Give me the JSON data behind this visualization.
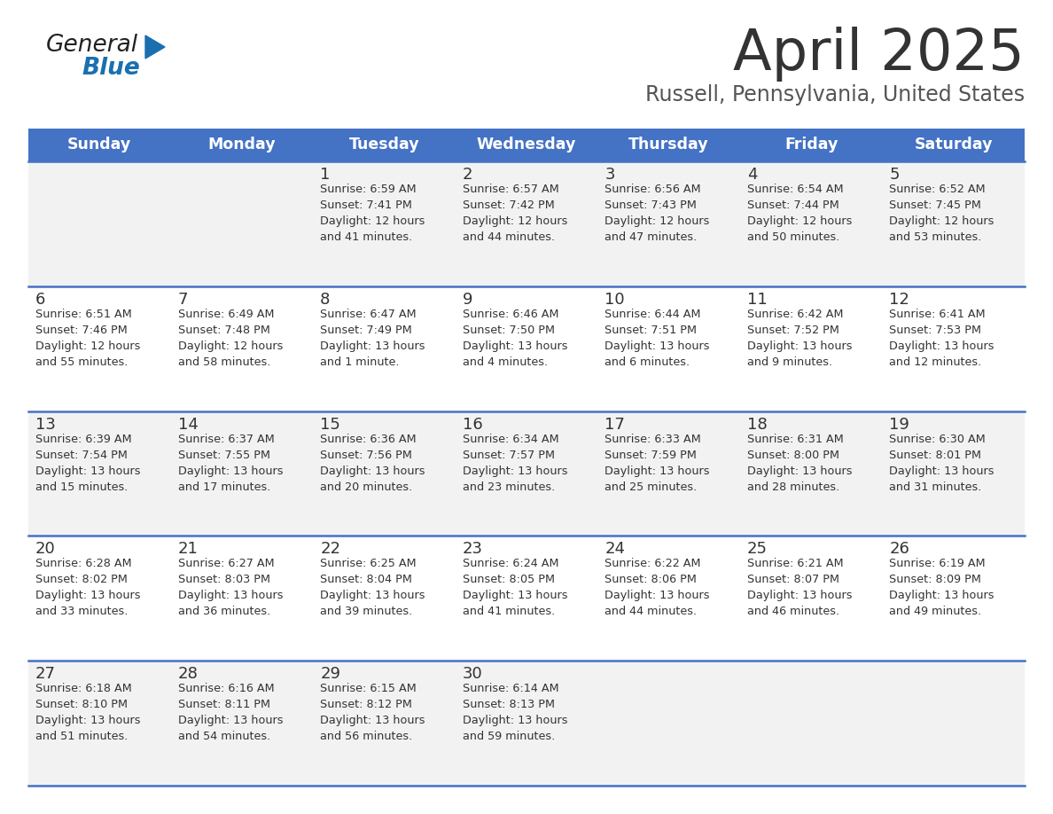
{
  "title": "April 2025",
  "subtitle": "Russell, Pennsylvania, United States",
  "header_bg_color": "#4472C4",
  "header_text_color": "#FFFFFF",
  "row_bg_even": "#F2F2F2",
  "row_bg_odd": "#FFFFFF",
  "separator_color": "#4472C4",
  "day_headers": [
    "Sunday",
    "Monday",
    "Tuesday",
    "Wednesday",
    "Thursday",
    "Friday",
    "Saturday"
  ],
  "calendar": [
    [
      {
        "day": "",
        "sunrise": "",
        "sunset": "",
        "daylight": ""
      },
      {
        "day": "",
        "sunrise": "",
        "sunset": "",
        "daylight": ""
      },
      {
        "day": "1",
        "sunrise": "Sunrise: 6:59 AM",
        "sunset": "Sunset: 7:41 PM",
        "daylight": "Daylight: 12 hours\nand 41 minutes."
      },
      {
        "day": "2",
        "sunrise": "Sunrise: 6:57 AM",
        "sunset": "Sunset: 7:42 PM",
        "daylight": "Daylight: 12 hours\nand 44 minutes."
      },
      {
        "day": "3",
        "sunrise": "Sunrise: 6:56 AM",
        "sunset": "Sunset: 7:43 PM",
        "daylight": "Daylight: 12 hours\nand 47 minutes."
      },
      {
        "day": "4",
        "sunrise": "Sunrise: 6:54 AM",
        "sunset": "Sunset: 7:44 PM",
        "daylight": "Daylight: 12 hours\nand 50 minutes."
      },
      {
        "day": "5",
        "sunrise": "Sunrise: 6:52 AM",
        "sunset": "Sunset: 7:45 PM",
        "daylight": "Daylight: 12 hours\nand 53 minutes."
      }
    ],
    [
      {
        "day": "6",
        "sunrise": "Sunrise: 6:51 AM",
        "sunset": "Sunset: 7:46 PM",
        "daylight": "Daylight: 12 hours\nand 55 minutes."
      },
      {
        "day": "7",
        "sunrise": "Sunrise: 6:49 AM",
        "sunset": "Sunset: 7:48 PM",
        "daylight": "Daylight: 12 hours\nand 58 minutes."
      },
      {
        "day": "8",
        "sunrise": "Sunrise: 6:47 AM",
        "sunset": "Sunset: 7:49 PM",
        "daylight": "Daylight: 13 hours\nand 1 minute."
      },
      {
        "day": "9",
        "sunrise": "Sunrise: 6:46 AM",
        "sunset": "Sunset: 7:50 PM",
        "daylight": "Daylight: 13 hours\nand 4 minutes."
      },
      {
        "day": "10",
        "sunrise": "Sunrise: 6:44 AM",
        "sunset": "Sunset: 7:51 PM",
        "daylight": "Daylight: 13 hours\nand 6 minutes."
      },
      {
        "day": "11",
        "sunrise": "Sunrise: 6:42 AM",
        "sunset": "Sunset: 7:52 PM",
        "daylight": "Daylight: 13 hours\nand 9 minutes."
      },
      {
        "day": "12",
        "sunrise": "Sunrise: 6:41 AM",
        "sunset": "Sunset: 7:53 PM",
        "daylight": "Daylight: 13 hours\nand 12 minutes."
      }
    ],
    [
      {
        "day": "13",
        "sunrise": "Sunrise: 6:39 AM",
        "sunset": "Sunset: 7:54 PM",
        "daylight": "Daylight: 13 hours\nand 15 minutes."
      },
      {
        "day": "14",
        "sunrise": "Sunrise: 6:37 AM",
        "sunset": "Sunset: 7:55 PM",
        "daylight": "Daylight: 13 hours\nand 17 minutes."
      },
      {
        "day": "15",
        "sunrise": "Sunrise: 6:36 AM",
        "sunset": "Sunset: 7:56 PM",
        "daylight": "Daylight: 13 hours\nand 20 minutes."
      },
      {
        "day": "16",
        "sunrise": "Sunrise: 6:34 AM",
        "sunset": "Sunset: 7:57 PM",
        "daylight": "Daylight: 13 hours\nand 23 minutes."
      },
      {
        "day": "17",
        "sunrise": "Sunrise: 6:33 AM",
        "sunset": "Sunset: 7:59 PM",
        "daylight": "Daylight: 13 hours\nand 25 minutes."
      },
      {
        "day": "18",
        "sunrise": "Sunrise: 6:31 AM",
        "sunset": "Sunset: 8:00 PM",
        "daylight": "Daylight: 13 hours\nand 28 minutes."
      },
      {
        "day": "19",
        "sunrise": "Sunrise: 6:30 AM",
        "sunset": "Sunset: 8:01 PM",
        "daylight": "Daylight: 13 hours\nand 31 minutes."
      }
    ],
    [
      {
        "day": "20",
        "sunrise": "Sunrise: 6:28 AM",
        "sunset": "Sunset: 8:02 PM",
        "daylight": "Daylight: 13 hours\nand 33 minutes."
      },
      {
        "day": "21",
        "sunrise": "Sunrise: 6:27 AM",
        "sunset": "Sunset: 8:03 PM",
        "daylight": "Daylight: 13 hours\nand 36 minutes."
      },
      {
        "day": "22",
        "sunrise": "Sunrise: 6:25 AM",
        "sunset": "Sunset: 8:04 PM",
        "daylight": "Daylight: 13 hours\nand 39 minutes."
      },
      {
        "day": "23",
        "sunrise": "Sunrise: 6:24 AM",
        "sunset": "Sunset: 8:05 PM",
        "daylight": "Daylight: 13 hours\nand 41 minutes."
      },
      {
        "day": "24",
        "sunrise": "Sunrise: 6:22 AM",
        "sunset": "Sunset: 8:06 PM",
        "daylight": "Daylight: 13 hours\nand 44 minutes."
      },
      {
        "day": "25",
        "sunrise": "Sunrise: 6:21 AM",
        "sunset": "Sunset: 8:07 PM",
        "daylight": "Daylight: 13 hours\nand 46 minutes."
      },
      {
        "day": "26",
        "sunrise": "Sunrise: 6:19 AM",
        "sunset": "Sunset: 8:09 PM",
        "daylight": "Daylight: 13 hours\nand 49 minutes."
      }
    ],
    [
      {
        "day": "27",
        "sunrise": "Sunrise: 6:18 AM",
        "sunset": "Sunset: 8:10 PM",
        "daylight": "Daylight: 13 hours\nand 51 minutes."
      },
      {
        "day": "28",
        "sunrise": "Sunrise: 6:16 AM",
        "sunset": "Sunset: 8:11 PM",
        "daylight": "Daylight: 13 hours\nand 54 minutes."
      },
      {
        "day": "29",
        "sunrise": "Sunrise: 6:15 AM",
        "sunset": "Sunset: 8:12 PM",
        "daylight": "Daylight: 13 hours\nand 56 minutes."
      },
      {
        "day": "30",
        "sunrise": "Sunrise: 6:14 AM",
        "sunset": "Sunset: 8:13 PM",
        "daylight": "Daylight: 13 hours\nand 59 minutes."
      },
      {
        "day": "",
        "sunrise": "",
        "sunset": "",
        "daylight": ""
      },
      {
        "day": "",
        "sunrise": "",
        "sunset": "",
        "daylight": ""
      },
      {
        "day": "",
        "sunrise": "",
        "sunset": "",
        "daylight": ""
      }
    ]
  ],
  "logo_text_general": "General",
  "logo_text_blue": "Blue",
  "logo_color_general": "#222222",
  "logo_color_blue": "#1a6faf",
  "logo_triangle_color": "#1a6faf",
  "text_color": "#333333",
  "cell_text_color": "#333333"
}
